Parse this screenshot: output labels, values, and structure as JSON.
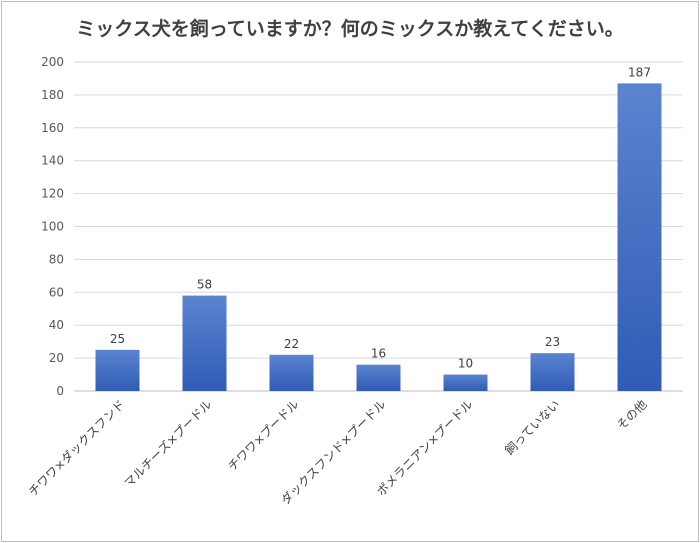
{
  "chart_data": {
    "type": "bar",
    "title": "ミックス犬を飼っていますか？何のミックスか教えてください。",
    "xlabel": "",
    "ylabel": "",
    "categories": [
      "チワワ×ダックスフンド",
      "マルチーズ×プードル",
      "チワワ×プードル",
      "ダックスフンド×プードル",
      "ポメラニアン×プードル",
      "飼っていない",
      "その他"
    ],
    "values": [
      25,
      58,
      22,
      16,
      10,
      23,
      187
    ],
    "ylim": [
      0,
      200
    ],
    "yticks": [
      0,
      20,
      40,
      60,
      80,
      100,
      120,
      140,
      160,
      180,
      200
    ],
    "grid": true,
    "legend": "none",
    "bar_color_top": "#5b84d0",
    "bar_color_bottom": "#2f5cb5"
  }
}
